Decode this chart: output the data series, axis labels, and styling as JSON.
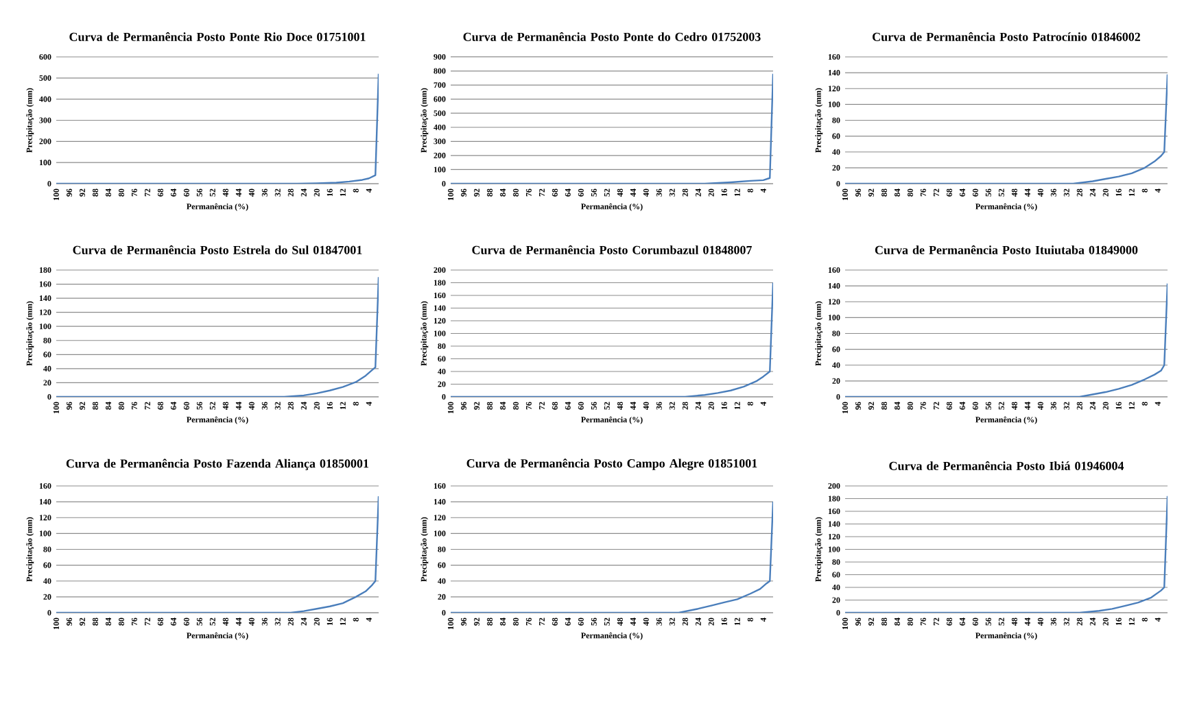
{
  "chart_data": [
    {
      "type": "line",
      "title": "Curva de Permanência Posto Ponte Rio Doce 01751001",
      "xlabel": "Permanência (%)",
      "ylabel": "Precipitação (mm)",
      "color": "#4a7ebb",
      "grid": "y",
      "xlim": [
        100,
        1
      ],
      "xticks": [
        100,
        96,
        92,
        88,
        84,
        80,
        76,
        72,
        68,
        64,
        60,
        56,
        52,
        48,
        44,
        40,
        36,
        32,
        28,
        24,
        20,
        16,
        12,
        8,
        4
      ],
      "ylim": [
        0,
        600
      ],
      "yticks": [
        0,
        100,
        200,
        300,
        400,
        500,
        600
      ],
      "x": [
        100,
        26,
        20,
        14,
        10,
        6,
        4,
        2,
        1
      ],
      "values": [
        0,
        0,
        2,
        5,
        10,
        18,
        25,
        40,
        520
      ]
    },
    {
      "type": "line",
      "title": "Curva de Permanência Posto Ponte do Cedro 01752003",
      "xlabel": "Permanência (%)",
      "ylabel": "Precipitação (mm)",
      "color": "#4a7ebb",
      "grid": "y",
      "xlim": [
        100,
        1
      ],
      "xticks": [
        100,
        96,
        92,
        88,
        84,
        80,
        76,
        72,
        68,
        64,
        60,
        56,
        52,
        48,
        44,
        40,
        36,
        32,
        28,
        24,
        20,
        16,
        12,
        8,
        4
      ],
      "ylim": [
        0,
        900
      ],
      "yticks": [
        0,
        100,
        200,
        300,
        400,
        500,
        600,
        700,
        800,
        900
      ],
      "x": [
        100,
        22,
        14,
        8,
        4,
        2,
        1
      ],
      "values": [
        0,
        0,
        10,
        20,
        25,
        40,
        780
      ]
    },
    {
      "type": "line",
      "title": "Curva de Permanência Posto Patrocínio 01846002",
      "xlabel": "Permanência (%)",
      "ylabel": "Precipitação (mm)",
      "color": "#4a7ebb",
      "grid": "y",
      "xlim": [
        100,
        1
      ],
      "xticks": [
        100,
        96,
        92,
        88,
        84,
        80,
        76,
        72,
        68,
        64,
        60,
        56,
        52,
        48,
        44,
        40,
        36,
        32,
        28,
        24,
        20,
        16,
        12,
        8,
        4
      ],
      "ylim": [
        0,
        160
      ],
      "yticks": [
        0,
        20,
        40,
        60,
        80,
        100,
        120,
        140,
        160
      ],
      "x": [
        100,
        30,
        24,
        20,
        16,
        12,
        8,
        5,
        3,
        2,
        1
      ],
      "values": [
        0,
        0,
        3,
        6,
        9,
        13,
        20,
        28,
        35,
        40,
        138
      ]
    },
    {
      "type": "line",
      "title": "Curva de Permanência Posto Estrela do Sul 01847001",
      "xlabel": "Permanência (%)",
      "ylabel": "Precipitação (mm)",
      "color": "#4a7ebb",
      "grid": "y",
      "xlim": [
        100,
        1
      ],
      "xticks": [
        100,
        96,
        92,
        88,
        84,
        80,
        76,
        72,
        68,
        64,
        60,
        56,
        52,
        48,
        44,
        40,
        36,
        32,
        28,
        24,
        20,
        16,
        12,
        8,
        4
      ],
      "ylim": [
        0,
        180
      ],
      "yticks": [
        0,
        20,
        40,
        60,
        80,
        100,
        120,
        140,
        160,
        180
      ],
      "x": [
        100,
        30,
        24,
        20,
        16,
        12,
        8,
        5,
        3,
        2,
        1
      ],
      "values": [
        0,
        0,
        2,
        5,
        9,
        14,
        21,
        30,
        38,
        42,
        170
      ]
    },
    {
      "type": "line",
      "title": "Curva de Permanência Posto Corumbazul 01848007",
      "xlabel": "Permanência (%)",
      "ylabel": "Precipitação (mm)",
      "color": "#4a7ebb",
      "grid": "y",
      "xlim": [
        100,
        1
      ],
      "xticks": [
        100,
        96,
        92,
        88,
        84,
        80,
        76,
        72,
        68,
        64,
        60,
        56,
        52,
        48,
        44,
        40,
        36,
        32,
        28,
        24,
        20,
        16,
        12,
        8,
        4
      ],
      "ylim": [
        0,
        200
      ],
      "yticks": [
        0,
        20,
        40,
        60,
        80,
        100,
        120,
        140,
        160,
        180,
        200
      ],
      "x": [
        100,
        28,
        22,
        18,
        14,
        10,
        6,
        4,
        2,
        1
      ],
      "values": [
        0,
        0,
        3,
        6,
        10,
        16,
        25,
        32,
        40,
        180
      ]
    },
    {
      "type": "line",
      "title": "Curva de Permanência Posto Ituiutaba 01849000",
      "xlabel": "Permanência (%)",
      "ylabel": "Precipitação (mm)",
      "color": "#4a7ebb",
      "grid": "y",
      "xlim": [
        100,
        1
      ],
      "xticks": [
        100,
        96,
        92,
        88,
        84,
        80,
        76,
        72,
        68,
        64,
        60,
        56,
        52,
        48,
        44,
        40,
        36,
        32,
        28,
        24,
        20,
        16,
        12,
        8,
        4
      ],
      "ylim": [
        0,
        160
      ],
      "yticks": [
        0,
        20,
        40,
        60,
        80,
        100,
        120,
        140,
        160
      ],
      "x": [
        100,
        28,
        24,
        20,
        16,
        12,
        8,
        5,
        3,
        2,
        1
      ],
      "values": [
        0,
        0,
        3,
        6,
        10,
        15,
        22,
        28,
        33,
        40,
        143
      ]
    },
    {
      "type": "line",
      "title": "Curva de Permanência Posto Fazenda Aliança 01850001",
      "xlabel": "Permanência (%)",
      "ylabel": "Precipitação (mm)",
      "color": "#4a7ebb",
      "grid": "y",
      "xlim": [
        100,
        1
      ],
      "xticks": [
        100,
        96,
        92,
        88,
        84,
        80,
        76,
        72,
        68,
        64,
        60,
        56,
        52,
        48,
        44,
        40,
        36,
        32,
        28,
        24,
        20,
        16,
        12,
        8,
        4
      ],
      "ylim": [
        0,
        160
      ],
      "yticks": [
        0,
        20,
        40,
        60,
        80,
        100,
        120,
        140,
        160
      ],
      "x": [
        100,
        28,
        24,
        20,
        16,
        12,
        8,
        5,
        3,
        2,
        1
      ],
      "values": [
        0,
        0,
        2,
        5,
        8,
        12,
        20,
        27,
        35,
        40,
        147
      ]
    },
    {
      "type": "line",
      "title": "Curva de Permanência Posto Campo Alegre 01851001",
      "xlabel": "Permanência (%)",
      "ylabel": "Precipitação (mm)",
      "color": "#4a7ebb",
      "grid": "y",
      "xlim": [
        100,
        1
      ],
      "xticks": [
        100,
        96,
        92,
        88,
        84,
        80,
        76,
        72,
        68,
        64,
        60,
        56,
        52,
        48,
        44,
        40,
        36,
        32,
        28,
        24,
        20,
        16,
        12,
        8,
        4
      ],
      "ylim": [
        0,
        160
      ],
      "yticks": [
        0,
        20,
        40,
        60,
        80,
        100,
        120,
        140,
        160
      ],
      "x": [
        100,
        30,
        24,
        20,
        16,
        12,
        8,
        5,
        3,
        2,
        1
      ],
      "values": [
        0,
        0,
        5,
        9,
        13,
        17,
        24,
        30,
        37,
        40,
        140
      ]
    },
    {
      "type": "line",
      "title": "Curva de Permanência Posto Ibiá 01946004",
      "xlabel": "Permanência (%)",
      "ylabel": "Precipitação (mm)",
      "color": "#4a7ebb",
      "grid": "y",
      "xlim": [
        100,
        1
      ],
      "xticks": [
        100,
        96,
        92,
        88,
        84,
        80,
        76,
        72,
        68,
        64,
        60,
        56,
        52,
        48,
        44,
        40,
        36,
        32,
        28,
        24,
        20,
        16,
        12,
        8,
        4
      ],
      "ylim": [
        0,
        200
      ],
      "yticks": [
        0,
        20,
        40,
        60,
        80,
        100,
        120,
        140,
        160,
        180,
        200
      ],
      "x": [
        100,
        28,
        22,
        18,
        14,
        10,
        6,
        3,
        2,
        1
      ],
      "values": [
        0,
        0,
        3,
        6,
        11,
        16,
        24,
        35,
        40,
        184
      ]
    }
  ]
}
